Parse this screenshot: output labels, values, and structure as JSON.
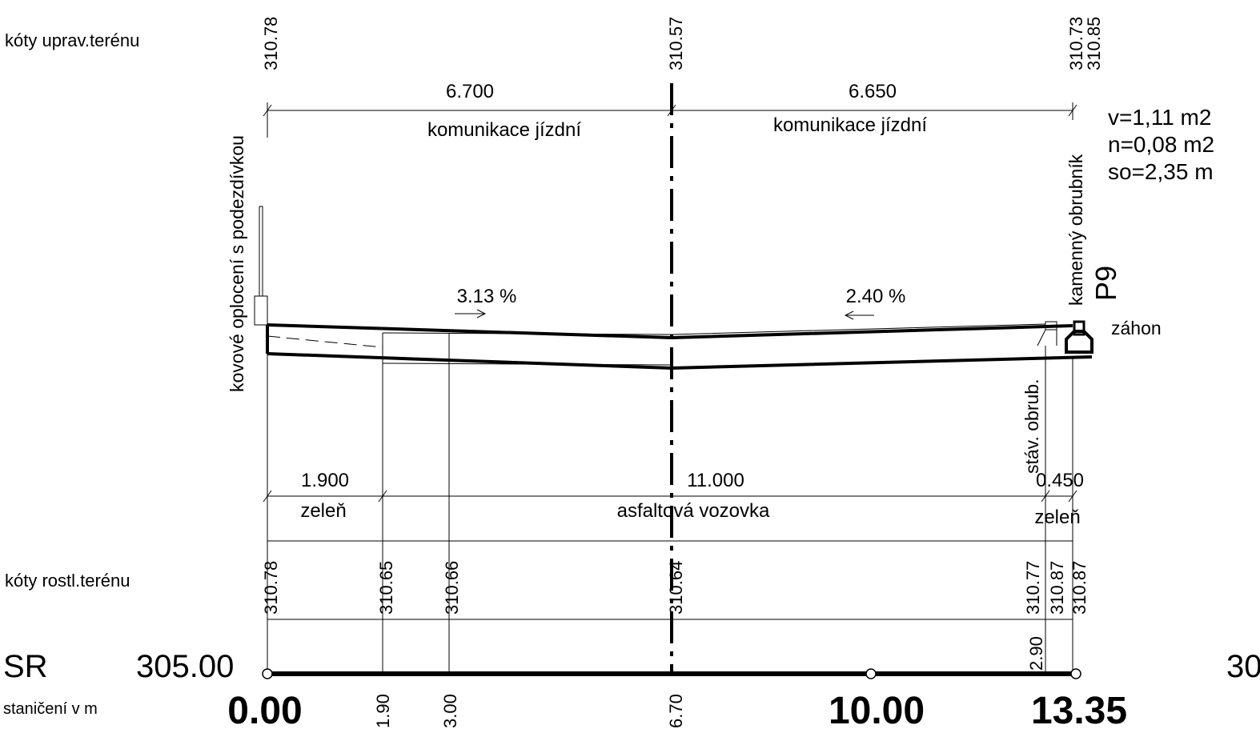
{
  "row_labels": {
    "upraveny": "kóty uprav.terénu",
    "rostly": "kóty rostl.terénu",
    "srovnavaci": "SR",
    "staniceni": "staničení v m"
  },
  "reference_level": "305.00",
  "reference_level_right": "30",
  "profile_name": "P9",
  "areas": {
    "v": "v=1,11 m2",
    "n": "n=0,08 m2",
    "so": "so=2,35 m"
  },
  "top_dims": {
    "left_width": "6.700",
    "right_width": "6.650",
    "left_label": "komunikace jízdní",
    "right_label": "komunikace jízdní"
  },
  "slopes": {
    "left": "3.13 %",
    "right": "2.40 %"
  },
  "annotations": {
    "fence": "kovové oplocení s podezdívkou",
    "curb_stone": "kamenný obrubník",
    "curb_existing": "stáv. obrub.",
    "flowerbed": "záhon"
  },
  "bottom_dims": {
    "green_left_width": "1.900",
    "asphalt_width": "11.000",
    "green_right_width": "0.450",
    "green_left_label": "zeleň",
    "asphalt_label": "asfaltová vozovka",
    "green_right_label": "zeleň"
  },
  "elev_top": {
    "left": "310.78",
    "center": "310.57",
    "right_1": "310.73",
    "right_2": "310.85"
  },
  "elev_bottom": {
    "e1": "310.78",
    "e2": "310.65",
    "e3": "310.66",
    "e4": "310.64",
    "e5": "310.77",
    "e6": "310.87",
    "e7": "310.87"
  },
  "stationing": {
    "s0": "0.00",
    "s1": "1.90",
    "s2": "3.00",
    "s3": "6.70",
    "s4": "10.00",
    "s5": "13.35",
    "extra": "2.90"
  }
}
